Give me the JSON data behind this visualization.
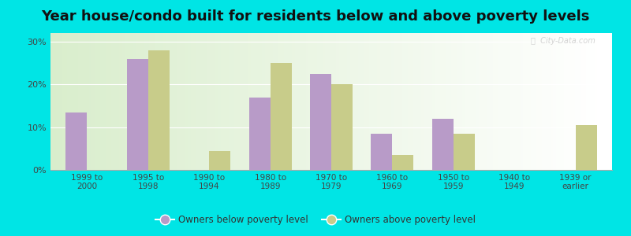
{
  "title": "Year house/condo built for residents below and above poverty levels",
  "categories": [
    "1999 to\n2000",
    "1995 to\n1998",
    "1990 to\n1994",
    "1980 to\n1989",
    "1970 to\n1979",
    "1960 to\n1969",
    "1950 to\n1959",
    "1940 to\n1949",
    "1939 or\nearlier"
  ],
  "below_poverty": [
    13.5,
    26.0,
    0,
    17.0,
    22.5,
    8.5,
    12.0,
    0,
    0
  ],
  "above_poverty": [
    0,
    28.0,
    4.5,
    25.0,
    20.0,
    3.5,
    8.5,
    0,
    10.5
  ],
  "below_color": "#b89bc8",
  "above_color": "#c8cc8a",
  "ylim": [
    0,
    32
  ],
  "yticks": [
    0,
    10,
    20,
    30
  ],
  "ytick_labels": [
    "0%",
    "10%",
    "20%",
    "30%"
  ],
  "background_outer": "#00e5e5",
  "legend_below_label": "Owners below poverty level",
  "legend_above_label": "Owners above poverty level",
  "title_fontsize": 13,
  "bar_width": 0.35
}
